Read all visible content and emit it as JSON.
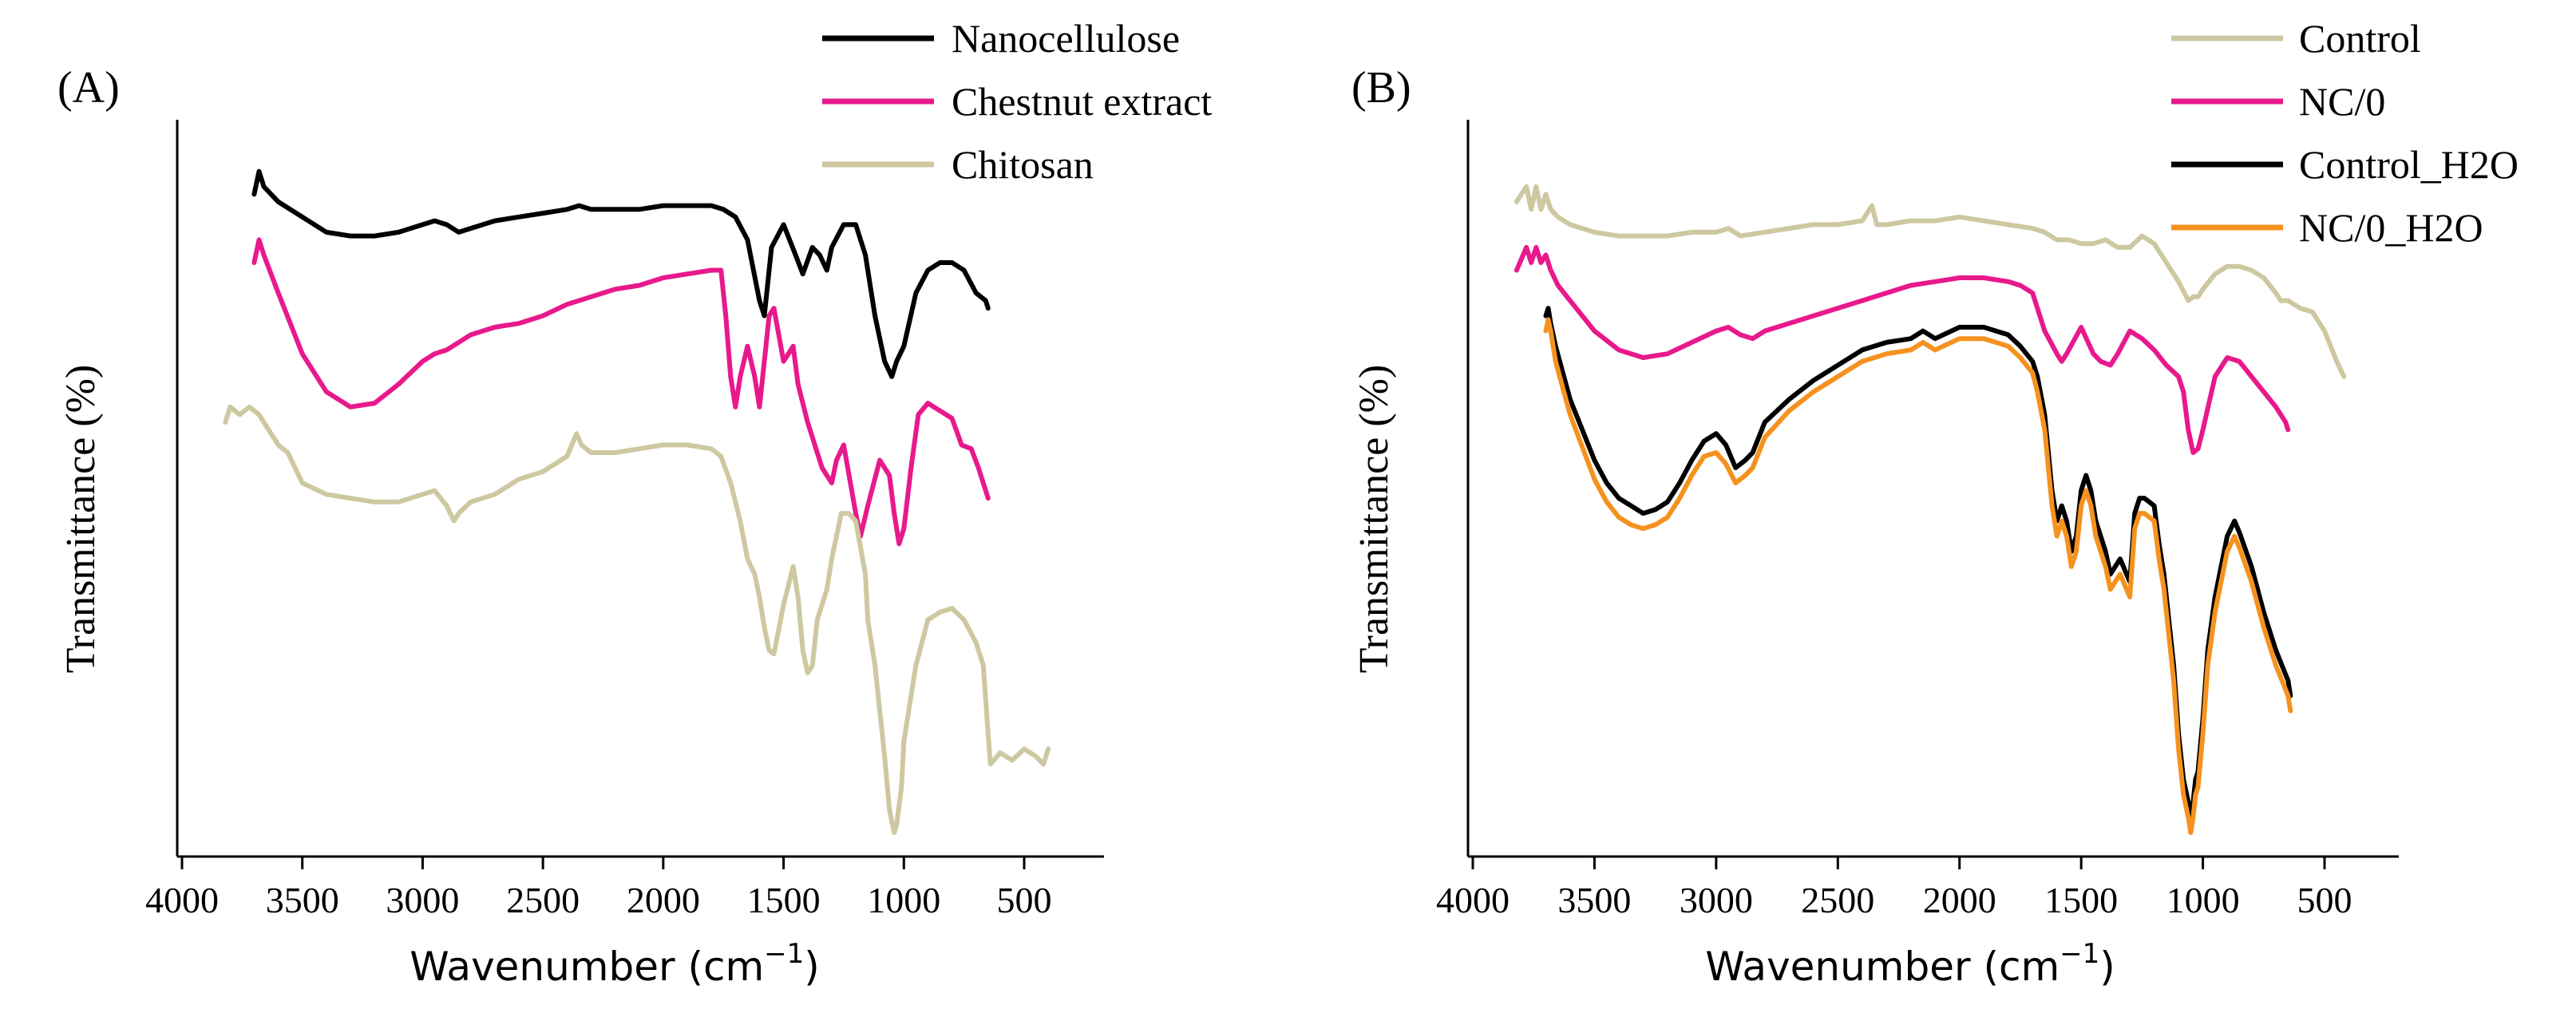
{
  "chart_data": [
    {
      "panel_label": "(A)",
      "type": "line",
      "xlabel_main": "Wavenumber (cm",
      "xlabel_sup": "−1",
      "xlabel_close": ")",
      "ylabel": "Transmittance (%)",
      "x_ticks": [
        "4000",
        "3500",
        "3000",
        "2500",
        "2000",
        "1500",
        "1000",
        "500"
      ],
      "xlim": [
        4000,
        200
      ],
      "ylim": [
        0,
        100
      ],
      "y_ticks_shown": false,
      "legend_position": "top-right",
      "series": [
        {
          "name": "Nanocellulose",
          "color": "#000000",
          "x": [
            3700,
            3680,
            3660,
            3600,
            3500,
            3400,
            3300,
            3200,
            3100,
            3000,
            2950,
            2900,
            2850,
            2800,
            2700,
            2600,
            2500,
            2400,
            2350,
            2300,
            2200,
            2100,
            2000,
            1900,
            1800,
            1750,
            1700,
            1650,
            1600,
            1580,
            1550,
            1500,
            1450,
            1420,
            1380,
            1350,
            1320,
            1300,
            1250,
            1200,
            1160,
            1120,
            1080,
            1050,
            1030,
            1000,
            950,
            900,
            850,
            800,
            750,
            700,
            660,
            650
          ],
          "y": [
            86,
            89,
            87,
            85,
            83,
            81,
            80.5,
            80.5,
            81,
            82,
            82.5,
            82,
            81,
            81.5,
            82.5,
            83,
            83.5,
            84,
            84.5,
            84,
            84,
            84,
            84.5,
            84.5,
            84.5,
            84,
            83,
            80,
            72,
            70,
            79,
            82,
            78,
            75.5,
            79,
            78,
            76,
            79,
            82,
            82,
            78,
            70,
            64,
            62,
            64,
            66,
            73,
            76,
            77,
            77,
            76,
            73,
            72,
            71
          ]
        },
        {
          "name": "Chestnut extract",
          "color": "#e8198c",
          "x": [
            3700,
            3680,
            3660,
            3600,
            3500,
            3400,
            3300,
            3200,
            3100,
            3000,
            2950,
            2900,
            2800,
            2700,
            2600,
            2500,
            2400,
            2300,
            2200,
            2100,
            2000,
            1900,
            1800,
            1760,
            1740,
            1720,
            1700,
            1680,
            1650,
            1620,
            1600,
            1580,
            1560,
            1540,
            1500,
            1460,
            1440,
            1400,
            1340,
            1300,
            1280,
            1250,
            1200,
            1180,
            1150,
            1100,
            1060,
            1040,
            1020,
            1000,
            970,
            940,
            900,
            850,
            800,
            760,
            720,
            690,
            660,
            650
          ],
          "y": [
            77,
            80,
            78,
            73,
            65,
            60,
            58,
            58.5,
            61,
            64,
            65,
            65.5,
            67.5,
            68.5,
            69,
            70,
            71.5,
            72.5,
            73.5,
            74,
            75,
            75.5,
            76,
            76,
            70,
            62,
            58,
            62,
            66,
            62,
            58,
            64,
            70,
            71,
            64,
            66,
            61,
            56,
            50,
            48,
            51,
            53,
            44,
            41,
            45,
            51,
            49,
            44,
            40,
            42,
            50,
            57,
            58.5,
            57.5,
            56.5,
            53,
            52.5,
            50,
            47,
            46
          ]
        },
        {
          "name": "Chitosan",
          "color": "#cdc8a0",
          "x": [
            3820,
            3800,
            3760,
            3720,
            3680,
            3640,
            3600,
            3560,
            3500,
            3400,
            3300,
            3200,
            3100,
            3000,
            2950,
            2900,
            2870,
            2850,
            2800,
            2700,
            2600,
            2500,
            2400,
            2360,
            2340,
            2300,
            2200,
            2100,
            2000,
            1900,
            1800,
            1760,
            1720,
            1680,
            1650,
            1620,
            1600,
            1580,
            1560,
            1540,
            1500,
            1460,
            1440,
            1420,
            1400,
            1380,
            1360,
            1320,
            1300,
            1260,
            1230,
            1200,
            1160,
            1150,
            1120,
            1100,
            1080,
            1060,
            1040,
            1030,
            1010,
            1000,
            980,
            950,
            900,
            850,
            800,
            750,
            700,
            670,
            650,
            640,
            600,
            550,
            500,
            450,
            420,
            400
          ],
          "y": [
            56,
            58,
            57,
            58,
            57,
            55,
            53,
            52,
            48,
            46.5,
            46,
            45.5,
            45.5,
            46.5,
            47,
            45,
            43,
            44,
            45.5,
            46.5,
            48.5,
            49.5,
            51.5,
            54.5,
            53,
            52,
            52,
            52.5,
            53,
            53,
            52.5,
            51.5,
            48,
            43,
            38,
            36,
            33,
            29,
            26,
            25.5,
            32,
            37,
            33,
            26,
            23,
            24,
            30,
            34,
            38,
            44,
            44,
            43,
            36,
            30,
            24,
            18,
            12,
            5,
            2,
            3,
            8,
            14,
            18,
            24,
            30,
            31,
            31.5,
            30,
            27,
            24,
            15,
            11,
            12.5,
            11.5,
            13,
            12,
            11,
            13
          ]
        }
      ]
    },
    {
      "panel_label": "(B)",
      "type": "line",
      "xlabel_main": "Wavenumber (cm",
      "xlabel_sup": "−1",
      "xlabel_close": ")",
      "ylabel": "Transmittance (%)",
      "x_ticks": [
        "4000",
        "3500",
        "3000",
        "2500",
        "2000",
        "1500",
        "1000",
        "500"
      ],
      "xlim": [
        4000,
        200
      ],
      "ylim": [
        0,
        100
      ],
      "y_ticks_shown": false,
      "legend_position": "top-right",
      "series": [
        {
          "name": "Control",
          "color": "#cdc8a0",
          "x": [
            3820,
            3780,
            3760,
            3740,
            3720,
            3700,
            3680,
            3650,
            3600,
            3500,
            3400,
            3300,
            3200,
            3100,
            3000,
            2950,
            2900,
            2800,
            2700,
            2600,
            2500,
            2400,
            2360,
            2340,
            2300,
            2200,
            2100,
            2000,
            1900,
            1800,
            1700,
            1650,
            1600,
            1550,
            1500,
            1450,
            1400,
            1350,
            1300,
            1250,
            1200,
            1150,
            1100,
            1060,
            1040,
            1020,
            1000,
            950,
            900,
            850,
            800,
            750,
            700,
            680,
            650,
            600,
            550,
            500,
            450,
            420
          ],
          "y": [
            85,
            87,
            84,
            87,
            84,
            86,
            84,
            83,
            82,
            81,
            80.5,
            80.5,
            80.5,
            81,
            81,
            81.5,
            80.5,
            81,
            81.5,
            82,
            82,
            82.5,
            84.5,
            82,
            82,
            82.5,
            82.5,
            83,
            82.5,
            82,
            81.5,
            81,
            80,
            80,
            79.5,
            79.5,
            80,
            79,
            79,
            80.5,
            79.5,
            77,
            74.5,
            72,
            72.5,
            72.5,
            73.5,
            75.5,
            76.5,
            76.5,
            76,
            75,
            73,
            72,
            72,
            71,
            70.5,
            68,
            64,
            62
          ]
        },
        {
          "name": "NC/0",
          "color": "#e8198c",
          "x": [
            3820,
            3780,
            3760,
            3740,
            3720,
            3700,
            3680,
            3650,
            3600,
            3500,
            3400,
            3300,
            3200,
            3100,
            3000,
            2950,
            2900,
            2850,
            2800,
            2700,
            2600,
            2500,
            2400,
            2300,
            2200,
            2100,
            2000,
            1900,
            1800,
            1750,
            1700,
            1650,
            1600,
            1580,
            1560,
            1500,
            1450,
            1420,
            1380,
            1350,
            1300,
            1250,
            1200,
            1150,
            1100,
            1080,
            1060,
            1040,
            1020,
            1000,
            950,
            900,
            850,
            800,
            750,
            700,
            660,
            650
          ],
          "y": [
            76,
            79,
            77,
            79,
            77,
            78,
            76,
            74,
            72,
            68,
            65.5,
            64.5,
            65,
            66.5,
            68,
            68.5,
            67.5,
            67,
            68,
            69,
            70,
            71,
            72,
            73,
            74,
            74.5,
            75,
            75,
            74.5,
            74,
            73,
            68,
            65,
            64,
            65,
            68.5,
            65,
            64,
            63.5,
            65,
            68,
            67,
            65.5,
            63.5,
            62,
            60,
            55,
            52,
            52.5,
            55,
            62,
            64.5,
            64,
            62,
            60,
            58,
            56,
            55
          ]
        },
        {
          "name": "Control_H2O",
          "color": "#000000",
          "x": [
            3700,
            3690,
            3680,
            3660,
            3600,
            3500,
            3450,
            3400,
            3350,
            3300,
            3250,
            3200,
            3150,
            3100,
            3050,
            3000,
            2960,
            2920,
            2880,
            2850,
            2800,
            2700,
            2600,
            2500,
            2400,
            2300,
            2200,
            2150,
            2100,
            2000,
            1950,
            1900,
            1850,
            1800,
            1750,
            1700,
            1680,
            1650,
            1620,
            1600,
            1580,
            1560,
            1540,
            1520,
            1500,
            1480,
            1460,
            1440,
            1400,
            1380,
            1360,
            1340,
            1300,
            1280,
            1260,
            1240,
            1200,
            1180,
            1160,
            1140,
            1120,
            1100,
            1080,
            1060,
            1050,
            1040,
            1030,
            1020,
            1000,
            980,
            950,
            900,
            870,
            850,
            800,
            750,
            700,
            650,
            640
          ],
          "y": [
            70,
            71,
            69,
            66,
            59,
            51,
            48,
            46,
            45,
            44,
            44.5,
            45.5,
            48,
            51,
            53.5,
            54.5,
            53,
            50,
            51,
            52,
            56,
            59,
            61.5,
            63.5,
            65.5,
            66.5,
            67,
            68,
            67,
            68.5,
            68.5,
            68.5,
            68,
            67.5,
            66,
            64,
            62,
            57,
            47,
            43,
            45,
            43,
            39,
            41,
            47,
            49,
            47,
            43,
            39,
            36,
            37,
            38,
            35,
            44,
            46,
            46,
            45,
            40,
            36,
            30,
            24,
            15,
            9,
            6,
            4,
            6,
            9,
            10,
            17,
            26,
            33,
            41,
            43,
            41.5,
            37,
            31,
            26,
            22,
            20
          ]
        },
        {
          "name": "NC/0_H2O",
          "color": "#f5921f",
          "x": [
            3700,
            3690,
            3680,
            3660,
            3600,
            3500,
            3450,
            3400,
            3350,
            3300,
            3250,
            3200,
            3150,
            3100,
            3050,
            3000,
            2960,
            2920,
            2880,
            2850,
            2800,
            2700,
            2600,
            2500,
            2400,
            2300,
            2200,
            2150,
            2100,
            2000,
            1950,
            1900,
            1850,
            1800,
            1750,
            1700,
            1680,
            1650,
            1620,
            1600,
            1580,
            1560,
            1540,
            1520,
            1500,
            1480,
            1460,
            1440,
            1400,
            1380,
            1360,
            1340,
            1300,
            1280,
            1260,
            1240,
            1200,
            1180,
            1160,
            1140,
            1120,
            1100,
            1080,
            1060,
            1050,
            1040,
            1030,
            1020,
            1000,
            980,
            950,
            900,
            870,
            850,
            800,
            750,
            700,
            650,
            640
          ],
          "y": [
            68,
            69.5,
            68,
            64,
            57,
            48.5,
            45.5,
            43.5,
            42.5,
            42,
            42.5,
            43.5,
            46,
            49,
            51.5,
            52,
            50.5,
            48,
            49,
            50,
            54,
            57.5,
            60,
            62,
            64,
            65,
            65.5,
            66.5,
            65.5,
            67,
            67,
            67,
            66.5,
            66,
            64.5,
            62.5,
            60,
            55,
            45,
            41,
            43,
            41,
            37,
            39,
            45,
            47,
            45,
            41,
            37,
            34,
            35,
            36,
            33,
            42,
            44,
            44,
            43,
            38,
            34,
            28,
            22,
            13,
            7,
            4,
            2,
            4,
            7,
            8,
            15,
            24,
            31,
            39,
            41,
            39.5,
            35,
            29,
            24,
            20,
            18
          ]
        }
      ]
    }
  ]
}
